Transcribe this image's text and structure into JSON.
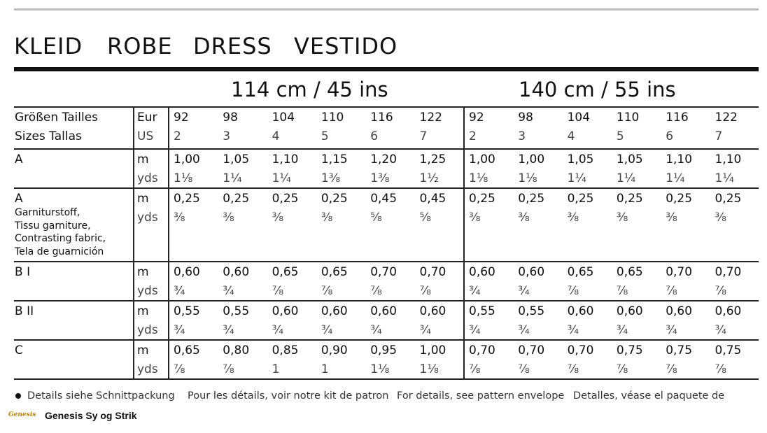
{
  "title": [
    "KLEID",
    "ROBE",
    "DRESS",
    "VESTIDO"
  ],
  "widths": [
    {
      "label": "114 cm / 45 ins",
      "eur": [
        "92",
        "98",
        "104",
        "110",
        "116",
        "122"
      ],
      "us": [
        "2",
        "3",
        "4",
        "5",
        "6",
        "7"
      ]
    },
    {
      "label": "140 cm / 55 ins",
      "eur": [
        "92",
        "98",
        "104",
        "110",
        "116",
        "122"
      ],
      "us": [
        "2",
        "3",
        "4",
        "5",
        "6",
        "7"
      ]
    }
  ],
  "header": {
    "labels": [
      "Größen Tailles",
      "Sizes Tallas"
    ],
    "units": [
      "Eur",
      "US"
    ]
  },
  "rows": [
    {
      "label": "A",
      "sublabel": [],
      "units": [
        "m",
        "yds"
      ],
      "m": [
        "1,00",
        "1,05",
        "1,10",
        "1,15",
        "1,20",
        "1,25",
        "1,00",
        "1,00",
        "1,05",
        "1,05",
        "1,10",
        "1,10"
      ],
      "yds": [
        "1⅛",
        "1¼",
        "1¼",
        "1⅜",
        "1⅜",
        "1½",
        "1⅛",
        "1⅛",
        "1¼",
        "1¼",
        "1¼",
        "1¼"
      ]
    },
    {
      "label": "A",
      "sublabel": [
        "Garniturstoff,",
        "Tissu garniture,",
        "Contrasting fabric,",
        "Tela de guarnición"
      ],
      "units": [
        "m",
        "yds"
      ],
      "m": [
        "0,25",
        "0,25",
        "0,25",
        "0,25",
        "0,45",
        "0,45",
        "0,25",
        "0,25",
        "0,25",
        "0,25",
        "0,25",
        "0,25"
      ],
      "yds": [
        "⅜",
        "⅜",
        "⅜",
        "⅜",
        "⅝",
        "⅝",
        "⅜",
        "⅜",
        "⅜",
        "⅜",
        "⅜",
        "⅜"
      ]
    },
    {
      "label": "B I",
      "sublabel": [],
      "units": [
        "m",
        "yds"
      ],
      "m": [
        "0,60",
        "0,60",
        "0,65",
        "0,65",
        "0,70",
        "0,70",
        "0,60",
        "0,60",
        "0,65",
        "0,65",
        "0,70",
        "0,70"
      ],
      "yds": [
        "¾",
        "¾",
        "⅞",
        "⅞",
        "⅞",
        "⅞",
        "¾",
        "¾",
        "⅞",
        "⅞",
        "⅞",
        "⅞"
      ]
    },
    {
      "label": "B II",
      "sublabel": [],
      "units": [
        "m",
        "yds"
      ],
      "m": [
        "0,55",
        "0,55",
        "0,60",
        "0,60",
        "0,60",
        "0,60",
        "0,55",
        "0,55",
        "0,60",
        "0,60",
        "0,60",
        "0,60"
      ],
      "yds": [
        "¾",
        "¾",
        "¾",
        "¾",
        "¾",
        "¾",
        "¾",
        "¾",
        "¾",
        "¾",
        "¾",
        "¾"
      ]
    },
    {
      "label": "C",
      "sublabel": [],
      "units": [
        "m",
        "yds"
      ],
      "m": [
        "0,65",
        "0,80",
        "0,85",
        "0,90",
        "0,95",
        "1,00",
        "0,70",
        "0,70",
        "0,70",
        "0,75",
        "0,75",
        "0,75"
      ],
      "yds": [
        "⅞",
        "⅞",
        "1",
        "1",
        "1⅛",
        "1⅛",
        "⅞",
        "⅞",
        "⅞",
        "⅞",
        "⅞",
        "⅞"
      ]
    }
  ],
  "notes": [
    "Details siehe Schnittpackung",
    "Pour les détails, voir notre kit de patron",
    "For details, see pattern envelope",
    "Detalles, véase el paquete de"
  ],
  "brand": {
    "logo": "Genesis",
    "name": "Genesis Sy og Strik"
  }
}
